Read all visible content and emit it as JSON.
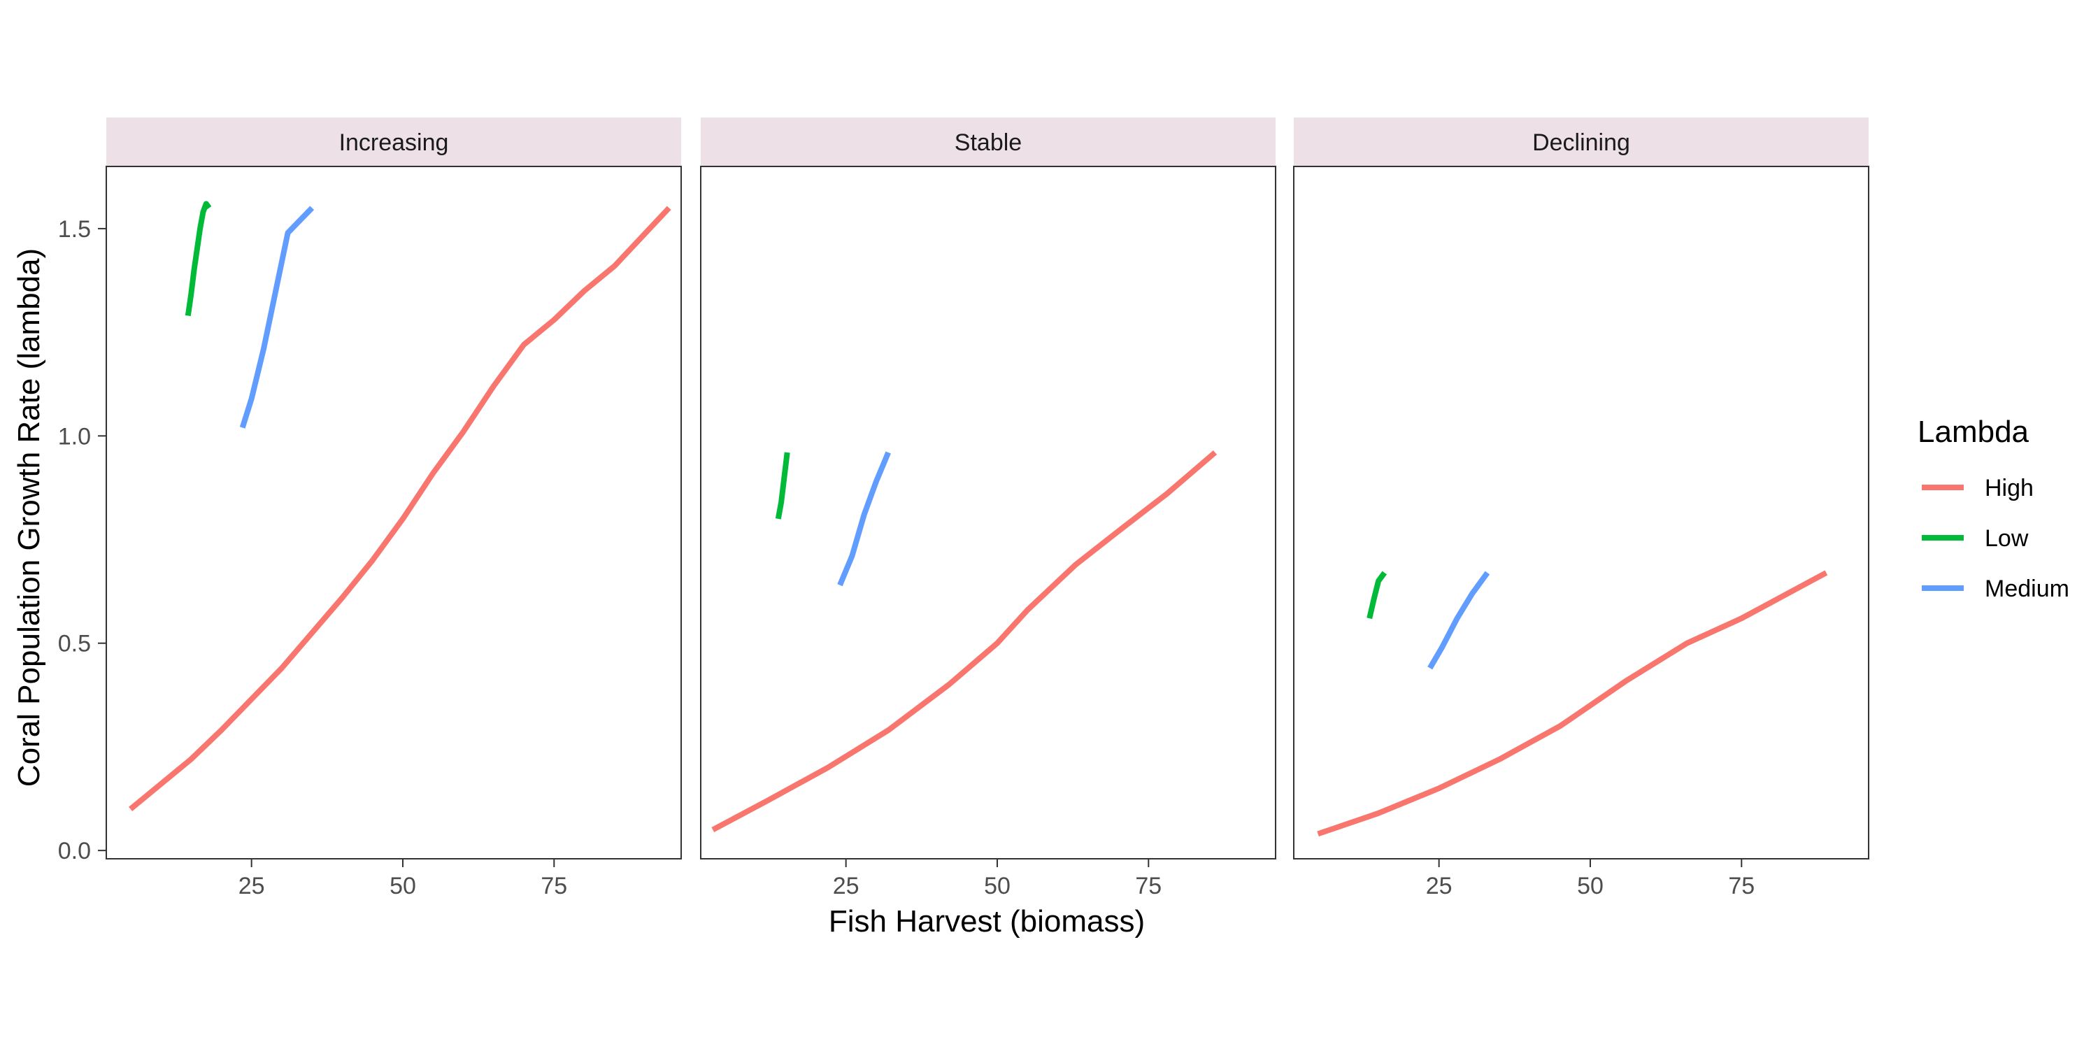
{
  "chart_data": {
    "type": "line",
    "xlabel": "Fish Harvest (biomass)",
    "ylabel": "Coral Population Growth Rate (lambda)",
    "xlim": [
      1,
      96
    ],
    "ylim": [
      -0.02,
      1.65
    ],
    "x_ticks": [
      25,
      50,
      75
    ],
    "y_ticks": [
      0.0,
      0.5,
      1.0,
      1.5
    ],
    "y_tick_labels": [
      "0.0",
      "0.5",
      "1.0",
      "1.5"
    ],
    "legend": {
      "title": "Lambda",
      "placement": "right",
      "entries": [
        {
          "name": "High",
          "color": "#F8766D"
        },
        {
          "name": "Low",
          "color": "#00BA38"
        },
        {
          "name": "Medium",
          "color": "#619CFF"
        }
      ]
    },
    "panels": [
      {
        "label": "Increasing",
        "series": [
          {
            "name": "High",
            "x": [
              5,
              15,
              20,
              30,
              40,
              45,
              50,
              55,
              60,
              65,
              70,
              75,
              80,
              85,
              94
            ],
            "y": [
              0.1,
              0.22,
              0.29,
              0.44,
              0.61,
              0.7,
              0.8,
              0.91,
              1.01,
              1.12,
              1.22,
              1.28,
              1.35,
              1.41,
              1.55
            ]
          },
          {
            "name": "Low",
            "x": [
              14.5,
              15.0,
              15.5,
              16.0,
              16.5,
              17.0,
              17.5,
              18.0
            ],
            "y": [
              1.29,
              1.34,
              1.4,
              1.45,
              1.5,
              1.54,
              1.56,
              1.55
            ]
          },
          {
            "name": "Medium",
            "x": [
              23.5,
              25,
              27,
              29,
              31,
              33,
              35
            ],
            "y": [
              1.02,
              1.09,
              1.21,
              1.35,
              1.49,
              1.52,
              1.55
            ]
          }
        ]
      },
      {
        "label": "Stable",
        "series": [
          {
            "name": "High",
            "x": [
              3,
              12,
              22,
              32,
              42,
              50,
              55,
              63,
              70,
              78,
              86
            ],
            "y": [
              0.05,
              0.12,
              0.2,
              0.29,
              0.4,
              0.5,
              0.58,
              0.69,
              0.77,
              0.86,
              0.96
            ]
          },
          {
            "name": "Low",
            "x": [
              13.8,
              14.3,
              14.8,
              15.3
            ],
            "y": [
              0.8,
              0.84,
              0.9,
              0.96
            ]
          },
          {
            "name": "Medium",
            "x": [
              24,
              26,
              28,
              30,
              32
            ],
            "y": [
              0.64,
              0.71,
              0.81,
              0.89,
              0.96
            ]
          }
        ]
      },
      {
        "label": "Declining",
        "series": [
          {
            "name": "High",
            "x": [
              5,
              15,
              25,
              35,
              45,
              50,
              56,
              66,
              75,
              89
            ],
            "y": [
              0.04,
              0.09,
              0.15,
              0.22,
              0.3,
              0.35,
              0.41,
              0.5,
              0.56,
              0.67
            ]
          },
          {
            "name": "Low",
            "x": [
              13.5,
              14.3,
              15.0,
              16.0
            ],
            "y": [
              0.56,
              0.61,
              0.65,
              0.67
            ]
          },
          {
            "name": "Medium",
            "x": [
              23.5,
              25.5,
              28,
              30.5,
              33
            ],
            "y": [
              0.44,
              0.49,
              0.56,
              0.62,
              0.67
            ]
          }
        ]
      }
    ]
  }
}
